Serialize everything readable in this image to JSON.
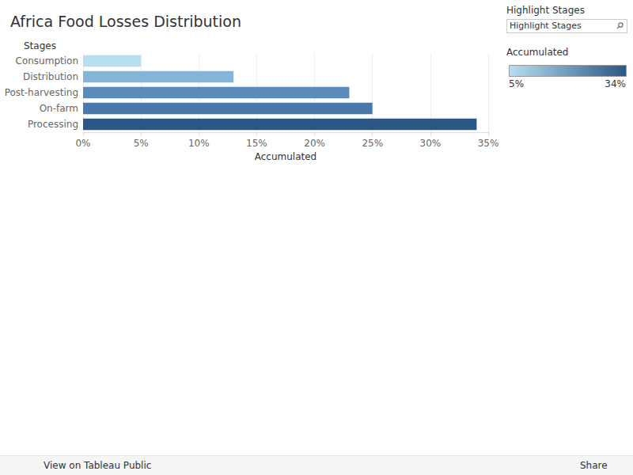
{
  "chart_data": {
    "type": "bar",
    "title": "Africa Food Losses Distribution",
    "orientation": "horizontal",
    "categories": [
      "Consumption",
      "Distribution",
      "Post-harvesting",
      "On-farm",
      "Processing"
    ],
    "values": [
      5,
      13,
      23,
      25,
      34
    ],
    "colors": [
      "#b9ddf1",
      "#86b4d9",
      "#5b8bbd",
      "#4a78ab",
      "#2a5783"
    ],
    "x_label": "Accumulated",
    "y_label": "Stages",
    "xlim": [
      0,
      35
    ],
    "xticks": [
      {
        "value": 0,
        "label": "0%"
      },
      {
        "value": 5,
        "label": "5%"
      },
      {
        "value": 10,
        "label": "10%"
      },
      {
        "value": 15,
        "label": "15%"
      },
      {
        "value": 20,
        "label": "20%"
      },
      {
        "value": 25,
        "label": "25%"
      },
      {
        "value": 30,
        "label": "30%"
      },
      {
        "value": 35,
        "label": "35%"
      }
    ],
    "grid": true,
    "color_scale": {
      "title": "Accumulated",
      "range": [
        5,
        34
      ],
      "ticks": [
        {
          "value": 5,
          "label": "5%"
        },
        {
          "value": 34,
          "label": "34%"
        }
      ],
      "colors": [
        "#b9ddf1",
        "#2a5783"
      ]
    }
  },
  "highlight": {
    "title": "Highlight Stages",
    "placeholder": "Highlight Stages"
  },
  "footer": {
    "link": "View on Tableau Public",
    "share": "Share"
  }
}
